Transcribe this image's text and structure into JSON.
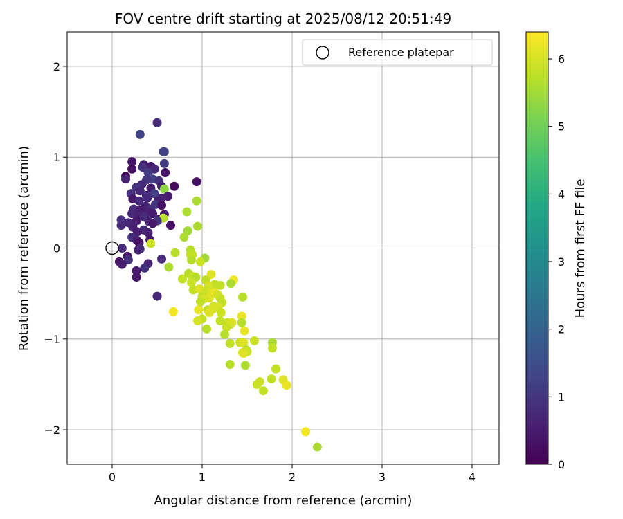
{
  "chart_data": {
    "type": "scatter",
    "title": "FOV centre drift starting at 2025/08/12 20:51:49",
    "xlabel": "Angular distance from reference (arcmin)",
    "ylabel": "Rotation from reference (arcmin)",
    "xlim": [
      -0.5,
      4.3
    ],
    "ylim": [
      -2.38,
      2.38
    ],
    "xticks": [
      0,
      1,
      2,
      3,
      4
    ],
    "yticks": [
      -2,
      -1,
      0,
      1,
      2
    ],
    "xtick_labels": [
      "0",
      "1",
      "2",
      "3",
      "4"
    ],
    "ytick_labels": [
      "−2",
      "−1",
      "0",
      "1",
      "2"
    ],
    "grid": true,
    "legend": {
      "position": "top-right",
      "label": "Reference platepar"
    },
    "reference_point": {
      "x": 0,
      "y": 0
    },
    "colorbar": {
      "label": "Hours from first FF file",
      "range": [
        0,
        6.4
      ],
      "ticks": [
        0,
        1,
        2,
        3,
        4,
        5,
        6
      ],
      "tick_labels": [
        "0",
        "1",
        "2",
        "3",
        "4",
        "5",
        "6"
      ],
      "colormap": "viridis"
    },
    "points": [
      [
        0.5,
        1.38,
        0.8
      ],
      [
        0.31,
        1.25,
        1.3
      ],
      [
        0.58,
        1.06,
        1.5
      ],
      [
        0.57,
        1.06,
        1.2
      ],
      [
        0.22,
        0.95,
        0.4
      ],
      [
        0.58,
        0.93,
        1.1
      ],
      [
        0.35,
        0.92,
        0.6
      ],
      [
        0.43,
        0.9,
        0.5
      ],
      [
        0.34,
        0.89,
        0.9
      ],
      [
        0.47,
        0.87,
        0.7
      ],
      [
        0.22,
        0.87,
        0.3
      ],
      [
        0.59,
        0.83,
        0.4
      ],
      [
        0.4,
        0.83,
        1.1
      ],
      [
        0.15,
        0.79,
        0.2
      ],
      [
        0.45,
        0.76,
        1.3
      ],
      [
        0.15,
        0.76,
        0.6
      ],
      [
        0.52,
        0.74,
        0.9
      ],
      [
        0.38,
        0.75,
        1.0
      ],
      [
        0.94,
        0.73,
        0.3
      ],
      [
        0.33,
        0.7,
        0.8
      ],
      [
        0.55,
        0.68,
        0.6
      ],
      [
        0.69,
        0.68,
        0.2
      ],
      [
        0.27,
        0.67,
        1.0
      ],
      [
        0.43,
        0.66,
        0.5
      ],
      [
        0.58,
        0.65,
        5.3
      ],
      [
        0.31,
        0.63,
        0.7
      ],
      [
        0.21,
        0.6,
        0.9
      ],
      [
        0.47,
        0.6,
        1.2
      ],
      [
        0.38,
        0.58,
        0.8
      ],
      [
        0.62,
        0.57,
        0.5
      ],
      [
        0.55,
        0.55,
        0.6
      ],
      [
        0.39,
        0.55,
        0.7
      ],
      [
        0.23,
        0.54,
        0.4
      ],
      [
        0.51,
        0.52,
        0.5
      ],
      [
        0.3,
        0.52,
        0.8
      ],
      [
        0.48,
        0.48,
        1.0
      ],
      [
        0.55,
        0.47,
        0.3
      ],
      [
        0.37,
        0.46,
        0.6
      ],
      [
        0.43,
        0.43,
        0.9
      ],
      [
        0.24,
        0.43,
        0.7
      ],
      [
        0.31,
        0.42,
        0.5
      ],
      [
        0.4,
        0.4,
        0.6
      ],
      [
        0.22,
        0.38,
        0.7
      ],
      [
        0.45,
        0.38,
        0.5
      ],
      [
        0.58,
        0.37,
        0.4
      ],
      [
        0.3,
        0.36,
        0.6
      ],
      [
        0.36,
        0.34,
        0.8
      ],
      [
        0.52,
        0.32,
        0.5
      ],
      [
        0.57,
        0.33,
        5.7
      ],
      [
        0.1,
        0.31,
        0.9
      ],
      [
        0.27,
        0.3,
        0.5
      ],
      [
        0.5,
        0.3,
        0.9
      ],
      [
        0.41,
        0.29,
        0.6
      ],
      [
        0.18,
        0.28,
        0.7
      ],
      [
        0.45,
        0.27,
        0.4
      ],
      [
        0.1,
        0.25,
        0.8
      ],
      [
        0.65,
        0.25,
        0.3
      ],
      [
        0.23,
        0.23,
        0.6
      ],
      [
        0.35,
        0.2,
        0.7
      ],
      [
        0.28,
        0.18,
        0.5
      ],
      [
        0.4,
        0.17,
        0.6
      ],
      [
        0.22,
        0.12,
        0.9
      ],
      [
        0.27,
        0.09,
        0.6
      ],
      [
        0.42,
        0.09,
        0.4
      ],
      [
        0.3,
        0.06,
        0.3
      ],
      [
        0.43,
        0.05,
        5.9
      ],
      [
        0.11,
        0.0,
        0.8
      ],
      [
        0.31,
        -0.01,
        1.0
      ],
      [
        0.29,
        -0.02,
        0.7
      ],
      [
        0.17,
        -0.09,
        0.4
      ],
      [
        0.55,
        -0.12,
        0.8
      ],
      [
        0.18,
        -0.13,
        0.9
      ],
      [
        0.08,
        -0.15,
        0.3
      ],
      [
        0.11,
        -0.18,
        0.5
      ],
      [
        0.4,
        -0.17,
        0.6
      ],
      [
        0.36,
        -0.22,
        0.9
      ],
      [
        0.27,
        -0.25,
        0.5
      ],
      [
        0.27,
        -0.32,
        0.4
      ],
      [
        0.5,
        -0.53,
        0.7
      ],
      [
        0.94,
        0.52,
        5.6
      ],
      [
        0.95,
        0.24,
        5.6
      ],
      [
        0.84,
        0.19,
        5.5
      ],
      [
        0.8,
        0.12,
        5.6
      ],
      [
        0.83,
        0.4,
        5.6
      ],
      [
        0.7,
        -0.05,
        5.7
      ],
      [
        0.87,
        -0.07,
        5.9
      ],
      [
        0.87,
        -0.02,
        5.7
      ],
      [
        0.89,
        -0.07,
        5.8
      ],
      [
        1.03,
        -0.11,
        5.5
      ],
      [
        0.88,
        -0.13,
        5.7
      ],
      [
        0.98,
        -0.15,
        5.9
      ],
      [
        0.63,
        -0.21,
        5.6
      ],
      [
        0.85,
        -0.28,
        5.7
      ],
      [
        0.89,
        -0.31,
        5.8
      ],
      [
        0.93,
        -0.32,
        5.7
      ],
      [
        1.1,
        -0.29,
        6.1
      ],
      [
        0.78,
        -0.34,
        5.8
      ],
      [
        0.88,
        -0.38,
        5.9
      ],
      [
        1.04,
        -0.35,
        5.8
      ],
      [
        1.35,
        -0.35,
        6.3
      ],
      [
        1.14,
        -0.4,
        5.8
      ],
      [
        1.32,
        -0.39,
        5.6
      ],
      [
        1.07,
        -0.42,
        6.0
      ],
      [
        1.2,
        -0.41,
        5.8
      ],
      [
        0.9,
        -0.46,
        5.8
      ],
      [
        0.97,
        -0.45,
        6.1
      ],
      [
        1.05,
        -0.47,
        5.9
      ],
      [
        1.1,
        -0.48,
        6.0
      ],
      [
        1.14,
        -0.49,
        6.2
      ],
      [
        1.17,
        -0.51,
        6.0
      ],
      [
        1.0,
        -0.53,
        5.8
      ],
      [
        1.08,
        -0.55,
        6.1
      ],
      [
        1.02,
        -0.56,
        6.0
      ],
      [
        1.45,
        -0.54,
        5.7
      ],
      [
        1.2,
        -0.55,
        5.9
      ],
      [
        0.98,
        -0.59,
        5.8
      ],
      [
        1.22,
        -0.6,
        5.8
      ],
      [
        1.13,
        -0.64,
        5.9
      ],
      [
        1.18,
        -0.65,
        6.0
      ],
      [
        0.96,
        -0.68,
        6.2
      ],
      [
        1.06,
        -0.68,
        5.8
      ],
      [
        1.12,
        -0.67,
        6.0
      ],
      [
        0.68,
        -0.7,
        6.3
      ],
      [
        1.08,
        -0.71,
        6.1
      ],
      [
        1.21,
        -0.71,
        5.9
      ],
      [
        1.44,
        -0.75,
        6.2
      ],
      [
        1.0,
        -0.78,
        5.8
      ],
      [
        0.95,
        -0.8,
        6.0
      ],
      [
        1.2,
        -0.8,
        5.8
      ],
      [
        1.28,
        -0.82,
        5.9
      ],
      [
        1.33,
        -0.82,
        6.1
      ],
      [
        1.31,
        -0.84,
        6.0
      ],
      [
        1.44,
        -0.82,
        5.7
      ],
      [
        1.27,
        -0.87,
        5.9
      ],
      [
        1.05,
        -0.89,
        5.7
      ],
      [
        1.47,
        -0.91,
        6.2
      ],
      [
        1.25,
        -0.95,
        5.7
      ],
      [
        1.58,
        -1.02,
        5.9
      ],
      [
        1.42,
        -1.04,
        5.9
      ],
      [
        1.46,
        -1.04,
        6.1
      ],
      [
        1.31,
        -1.05,
        5.8
      ],
      [
        1.78,
        -1.04,
        5.6
      ],
      [
        1.78,
        -1.1,
        5.8
      ],
      [
        1.49,
        -1.12,
        5.7
      ],
      [
        1.45,
        -1.15,
        6.0
      ],
      [
        1.5,
        -1.14,
        5.9
      ],
      [
        1.46,
        -1.16,
        6.1
      ],
      [
        1.31,
        -1.28,
        5.7
      ],
      [
        1.48,
        -1.29,
        5.6
      ],
      [
        1.82,
        -1.33,
        5.8
      ],
      [
        1.77,
        -1.44,
        5.8
      ],
      [
        1.9,
        -1.45,
        6.1
      ],
      [
        1.64,
        -1.47,
        5.9
      ],
      [
        1.61,
        -1.5,
        5.9
      ],
      [
        1.94,
        -1.51,
        6.2
      ],
      [
        1.68,
        -1.57,
        5.8
      ],
      [
        2.15,
        -2.02,
        6.3
      ],
      [
        2.28,
        -2.19,
        5.6
      ]
    ]
  }
}
